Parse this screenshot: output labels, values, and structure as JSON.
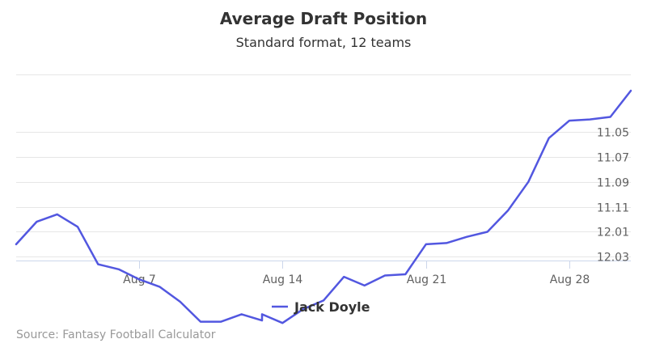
{
  "chart_data": {
    "type": "line",
    "title": "Average Draft Position",
    "subtitle": "Standard format, 12 teams",
    "credits": "Source: Fantasy Football Calculator",
    "x_tick_labels": [
      {
        "date": "2017-08-07",
        "label": "Aug 7"
      },
      {
        "date": "2017-08-14",
        "label": "Aug 14"
      },
      {
        "date": "2017-08-21",
        "label": "Aug 21"
      },
      {
        "date": "2017-08-28",
        "label": "Aug 28"
      }
    ],
    "x_range": [
      "2017-08-01",
      "2017-08-31"
    ],
    "y_tick_labels": [
      "11.05",
      "11.07",
      "11.09",
      "11.11",
      "12.01",
      "12.03"
    ],
    "y_reversed": true,
    "grid": true,
    "legend_position": "bottom-center",
    "colors": {
      "line": "#5257e0",
      "grid": "#e6e6e6",
      "axis": "#ccd6eb"
    },
    "series": [
      {
        "name": "Jack Doyle",
        "points": [
          [
            "2017-08-01",
            11.14
          ],
          [
            "2017-08-02",
            11.122
          ],
          [
            "2017-08-03",
            11.116
          ],
          [
            "2017-08-04",
            11.126
          ],
          [
            "2017-08-05",
            11.156
          ],
          [
            "2017-08-06",
            11.16
          ],
          [
            "2017-08-07",
            11.168
          ],
          [
            "2017-08-08",
            11.174
          ],
          [
            "2017-08-09",
            11.186
          ],
          [
            "2017-08-10",
            11.202
          ],
          [
            "2017-08-11",
            11.202
          ],
          [
            "2017-08-12",
            11.196
          ],
          [
            "2017-08-13",
            11.201
          ],
          [
            "2017-08-13",
            11.196
          ],
          [
            "2017-08-14",
            11.203
          ],
          [
            "2017-08-15",
            11.192
          ],
          [
            "2017-08-16",
            11.185
          ],
          [
            "2017-08-17",
            11.166
          ],
          [
            "2017-08-18",
            11.173
          ],
          [
            "2017-08-19",
            11.165
          ],
          [
            "2017-08-20",
            11.164
          ],
          [
            "2017-08-21",
            11.14
          ],
          [
            "2017-08-22",
            11.139
          ],
          [
            "2017-08-23",
            11.134
          ],
          [
            "2017-08-24",
            11.13
          ],
          [
            "2017-08-25",
            11.113
          ],
          [
            "2017-08-26",
            11.09
          ],
          [
            "2017-08-27",
            11.055
          ],
          [
            "2017-08-28",
            11.041
          ],
          [
            "2017-08-29",
            11.04
          ],
          [
            "2017-08-30",
            11.038
          ],
          [
            "2017-08-31",
            11.017
          ]
        ]
      }
    ]
  }
}
